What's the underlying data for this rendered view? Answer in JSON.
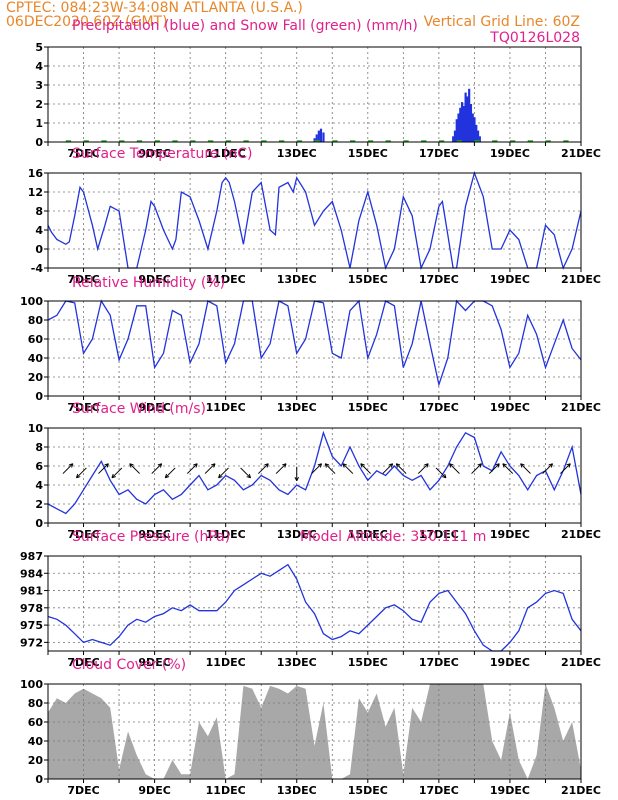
{
  "header": {
    "line1_left": "CPTEC:  084:23W-34:08N  ATLANTA (U.S.A.)",
    "line2_left": "06DEC2020 60Z (GMT)",
    "line2_right": "Vertical Grid Line: 60Z",
    "run_code": "TQ0126L028"
  },
  "colors": {
    "header": "#e8862a",
    "title": "#e0208c",
    "line": "#2233dd",
    "snow": "#22aa22",
    "cloud": "#a8a8a8"
  },
  "date_labels": [
    "7DEC",
    "9DEC",
    "11DEC",
    "13DEC",
    "15DEC",
    "17DEC",
    "19DEC",
    "21DEC"
  ],
  "chart_data": [
    {
      "id": "precip",
      "type": "bar",
      "title": "Precipitation (blue) and Snow Fall (green) (mm/h)",
      "xlim": [
        6.0,
        21.0
      ],
      "ylim": [
        0,
        5
      ],
      "yticks": [
        0,
        1,
        2,
        3,
        4,
        5
      ],
      "series": [
        {
          "name": "Precipitation",
          "x": [
            13.5,
            13.56,
            13.62,
            13.68,
            13.75,
            17.4,
            17.45,
            17.5,
            17.55,
            17.6,
            17.65,
            17.7,
            17.75,
            17.8,
            17.85,
            17.9,
            17.95,
            18.0,
            18.05,
            18.1,
            18.15
          ],
          "y": [
            0.2,
            0.4,
            0.6,
            0.7,
            0.5,
            0.3,
            0.6,
            1.2,
            1.5,
            1.8,
            2.1,
            1.9,
            2.6,
            2.4,
            2.8,
            2.0,
            1.5,
            1.3,
            0.9,
            0.6,
            0.3
          ]
        },
        {
          "name": "Snow Fall",
          "x": [],
          "y": []
        }
      ]
    },
    {
      "id": "temp",
      "type": "line",
      "title": "Surface Temperature (nC)",
      "xlim": [
        6.0,
        21.0
      ],
      "ylim": [
        -4,
        16
      ],
      "yticks": [
        -4,
        0,
        4,
        8,
        12,
        16
      ],
      "series": [
        {
          "name": "",
          "x": [
            6.0,
            6.1,
            6.25,
            6.5,
            6.6,
            6.75,
            6.9,
            7.0,
            7.25,
            7.4,
            7.6,
            7.75,
            8.0,
            8.25,
            8.5,
            8.75,
            8.9,
            9.0,
            9.25,
            9.5,
            9.6,
            9.75,
            10.0,
            10.25,
            10.5,
            10.75,
            10.9,
            11.0,
            11.1,
            11.25,
            11.5,
            11.75,
            12.0,
            12.25,
            12.4,
            12.5,
            12.75,
            12.9,
            13.0,
            13.25,
            13.5,
            13.75,
            14.0,
            14.25,
            14.5,
            14.75,
            15.0,
            15.25,
            15.5,
            15.75,
            16.0,
            16.25,
            16.5,
            16.75,
            17.0,
            17.1,
            17.25,
            17.4,
            17.5,
            17.75,
            18.0,
            18.25,
            18.5,
            18.75,
            19.0,
            19.25,
            19.5,
            19.75,
            20.0,
            20.25,
            20.5,
            20.75,
            21.0
          ],
          "y": [
            5,
            3.5,
            2,
            1,
            1.5,
            7,
            13,
            12,
            5,
            0,
            5,
            9,
            8,
            -4,
            -5,
            4,
            10,
            9,
            4,
            0,
            2,
            12,
            11,
            6,
            0,
            8,
            14,
            15,
            14,
            10,
            1,
            12,
            14,
            4,
            3,
            13,
            14,
            12,
            15,
            12,
            5,
            8,
            10,
            4,
            -4,
            6,
            12,
            5,
            -4,
            0,
            11,
            7,
            -4,
            0,
            9,
            10,
            3,
            -4,
            -4,
            9,
            16,
            11,
            0,
            0,
            4,
            2,
            -4,
            -4,
            5,
            3,
            -4,
            0,
            8
          ]
        }
      ]
    },
    {
      "id": "rh",
      "type": "line",
      "title": "Relative Humidity (%)",
      "xlim": [
        6.0,
        21.0
      ],
      "ylim": [
        0,
        100
      ],
      "yticks": [
        0,
        20,
        40,
        60,
        80,
        100
      ],
      "series": [
        {
          "name": "",
          "x": [
            6.0,
            6.25,
            6.5,
            6.75,
            7.0,
            7.25,
            7.5,
            7.75,
            8.0,
            8.25,
            8.5,
            8.75,
            9.0,
            9.25,
            9.5,
            9.75,
            10.0,
            10.25,
            10.5,
            10.75,
            11.0,
            11.25,
            11.5,
            11.75,
            12.0,
            12.25,
            12.5,
            12.75,
            13.0,
            13.25,
            13.5,
            13.75,
            14.0,
            14.25,
            14.5,
            14.75,
            15.0,
            15.25,
            15.5,
            15.75,
            16.0,
            16.25,
            16.5,
            16.75,
            17.0,
            17.25,
            17.5,
            17.75,
            18.0,
            18.25,
            18.5,
            18.75,
            19.0,
            19.25,
            19.5,
            19.75,
            20.0,
            20.25,
            20.5,
            20.75,
            21.0
          ],
          "y": [
            80,
            85,
            100,
            98,
            45,
            60,
            100,
            85,
            38,
            60,
            95,
            95,
            30,
            45,
            90,
            85,
            35,
            55,
            100,
            95,
            35,
            55,
            100,
            100,
            40,
            55,
            100,
            95,
            45,
            60,
            100,
            98,
            45,
            40,
            90,
            100,
            40,
            65,
            100,
            95,
            30,
            55,
            100,
            55,
            12,
            40,
            100,
            90,
            100,
            100,
            95,
            70,
            30,
            45,
            85,
            65,
            30,
            55,
            80,
            50,
            38
          ]
        }
      ]
    },
    {
      "id": "wind",
      "type": "line",
      "title": "Surface Wind (m/s)",
      "xlim": [
        6.0,
        21.0
      ],
      "ylim": [
        0,
        10
      ],
      "yticks": [
        0,
        2,
        4,
        6,
        8,
        10
      ],
      "series": [
        {
          "name": "",
          "x": [
            6.0,
            6.25,
            6.5,
            6.75,
            7.0,
            7.25,
            7.5,
            7.75,
            8.0,
            8.25,
            8.5,
            8.75,
            9.0,
            9.25,
            9.5,
            9.75,
            10.0,
            10.25,
            10.5,
            10.75,
            11.0,
            11.25,
            11.5,
            11.75,
            12.0,
            12.25,
            12.5,
            12.75,
            13.0,
            13.25,
            13.5,
            13.75,
            14.0,
            14.25,
            14.5,
            14.75,
            15.0,
            15.25,
            15.5,
            15.75,
            16.0,
            16.25,
            16.5,
            16.75,
            17.0,
            17.25,
            17.5,
            17.75,
            18.0,
            18.25,
            18.5,
            18.75,
            19.0,
            19.25,
            19.5,
            19.75,
            20.0,
            20.25,
            20.5,
            20.75,
            21.0
          ],
          "y": [
            2,
            1.5,
            1,
            2,
            3.5,
            5,
            6.5,
            4.5,
            3,
            3.5,
            2.5,
            2,
            3,
            3.5,
            2.5,
            3,
            4,
            5,
            3.5,
            4,
            5,
            4.5,
            3.5,
            4,
            5,
            4.5,
            3.5,
            3,
            4,
            3.5,
            6,
            9.5,
            7,
            6,
            8,
            6,
            4.5,
            5.5,
            5,
            6,
            5,
            4.5,
            5,
            3.5,
            4.5,
            6,
            8,
            9.5,
            9,
            6,
            5.5,
            7.5,
            6,
            5,
            3.5,
            5,
            5.5,
            3.5,
            5.5,
            8,
            3
          ]
        }
      ],
      "vectors": [
        {
          "x": 6.5,
          "dir": 45
        },
        {
          "x": 7.0,
          "dir": 225
        },
        {
          "x": 7.5,
          "dir": 45
        },
        {
          "x": 8.0,
          "dir": 225
        },
        {
          "x": 8.5,
          "dir": 135
        },
        {
          "x": 9.0,
          "dir": 45
        },
        {
          "x": 9.5,
          "dir": 225
        },
        {
          "x": 10.0,
          "dir": 45
        },
        {
          "x": 10.5,
          "dir": 45
        },
        {
          "x": 11.0,
          "dir": 225
        },
        {
          "x": 11.5,
          "dir": 315
        },
        {
          "x": 12.0,
          "dir": 45
        },
        {
          "x": 12.5,
          "dir": 45
        },
        {
          "x": 13.0,
          "dir": 270
        },
        {
          "x": 13.5,
          "dir": 45
        },
        {
          "x": 14.0,
          "dir": 135
        },
        {
          "x": 14.5,
          "dir": 135
        },
        {
          "x": 15.0,
          "dir": 135
        },
        {
          "x": 15.5,
          "dir": 45
        },
        {
          "x": 16.0,
          "dir": 135
        },
        {
          "x": 16.5,
          "dir": 45
        },
        {
          "x": 17.0,
          "dir": 315
        },
        {
          "x": 17.5,
          "dir": 135
        },
        {
          "x": 18.0,
          "dir": 45
        },
        {
          "x": 18.5,
          "dir": 45
        },
        {
          "x": 19.0,
          "dir": 135
        },
        {
          "x": 19.5,
          "dir": 135
        },
        {
          "x": 20.0,
          "dir": 45
        },
        {
          "x": 20.5,
          "dir": 45
        }
      ]
    },
    {
      "id": "press",
      "type": "line",
      "title": "Surface Pressure (hPa)",
      "subtitle": "Model Altitude: 350.111  m",
      "xlim": [
        6.0,
        21.0
      ],
      "ylim": [
        970.5,
        987
      ],
      "yticks": [
        972,
        975,
        978,
        981,
        984,
        987
      ],
      "series": [
        {
          "name": "",
          "x": [
            6.0,
            6.25,
            6.5,
            6.75,
            7.0,
            7.25,
            7.5,
            7.75,
            8.0,
            8.25,
            8.5,
            8.75,
            9.0,
            9.25,
            9.5,
            9.75,
            10.0,
            10.25,
            10.5,
            10.75,
            11.0,
            11.25,
            11.5,
            11.75,
            12.0,
            12.25,
            12.5,
            12.75,
            13.0,
            13.25,
            13.5,
            13.75,
            14.0,
            14.25,
            14.5,
            14.75,
            15.0,
            15.25,
            15.5,
            15.75,
            16.0,
            16.25,
            16.5,
            16.75,
            17.0,
            17.25,
            17.5,
            17.75,
            18.0,
            18.25,
            18.5,
            18.75,
            19.0,
            19.25,
            19.5,
            19.75,
            20.0,
            20.25,
            20.5,
            20.75,
            21.0
          ],
          "y": [
            976.5,
            976,
            975,
            973.5,
            972,
            972.5,
            972,
            971.5,
            973,
            975,
            976,
            975.5,
            976.5,
            977,
            978,
            977.5,
            978.5,
            977.5,
            977.5,
            977.5,
            979,
            981,
            982,
            983,
            984,
            983.5,
            984.5,
            985.5,
            983,
            979,
            977,
            973.5,
            972.5,
            973,
            974,
            973.5,
            975,
            976.5,
            978,
            978.5,
            977.5,
            976,
            975.5,
            979,
            980.5,
            981,
            979,
            977,
            974,
            971.5,
            970.5,
            970.5,
            972,
            974,
            978,
            979,
            980.5,
            981,
            980.5,
            976,
            974
          ]
        }
      ]
    },
    {
      "id": "cloud",
      "type": "area",
      "title": "Cloud Cover (%)",
      "xlim": [
        6.0,
        21.0
      ],
      "ylim": [
        0,
        100
      ],
      "yticks": [
        0,
        20,
        40,
        60,
        80,
        100
      ],
      "series": [
        {
          "name": "",
          "x": [
            6.0,
            6.25,
            6.5,
            6.75,
            7.0,
            7.25,
            7.5,
            7.75,
            8.0,
            8.25,
            8.5,
            8.75,
            9.0,
            9.25,
            9.5,
            9.75,
            10.0,
            10.25,
            10.5,
            10.75,
            11.0,
            11.25,
            11.5,
            11.75,
            12.0,
            12.25,
            12.5,
            12.75,
            13.0,
            13.25,
            13.5,
            13.75,
            14.0,
            14.25,
            14.5,
            14.75,
            15.0,
            15.25,
            15.5,
            15.75,
            16.0,
            16.25,
            16.5,
            16.75,
            17.0,
            17.25,
            17.5,
            17.75,
            18.0,
            18.25,
            18.5,
            18.75,
            19.0,
            19.25,
            19.5,
            19.75,
            20.0,
            20.25,
            20.5,
            20.75,
            21.0
          ],
          "y": [
            70,
            85,
            80,
            90,
            95,
            90,
            85,
            75,
            10,
            50,
            25,
            5,
            0,
            0,
            20,
            5,
            5,
            60,
            45,
            65,
            0,
            5,
            98,
            95,
            75,
            98,
            95,
            90,
            98,
            95,
            35,
            80,
            0,
            0,
            5,
            85,
            70,
            90,
            55,
            75,
            5,
            75,
            60,
            100,
            100,
            100,
            100,
            100,
            100,
            100,
            40,
            20,
            70,
            20,
            0,
            25,
            100,
            75,
            40,
            60,
            10
          ]
        }
      ]
    }
  ]
}
